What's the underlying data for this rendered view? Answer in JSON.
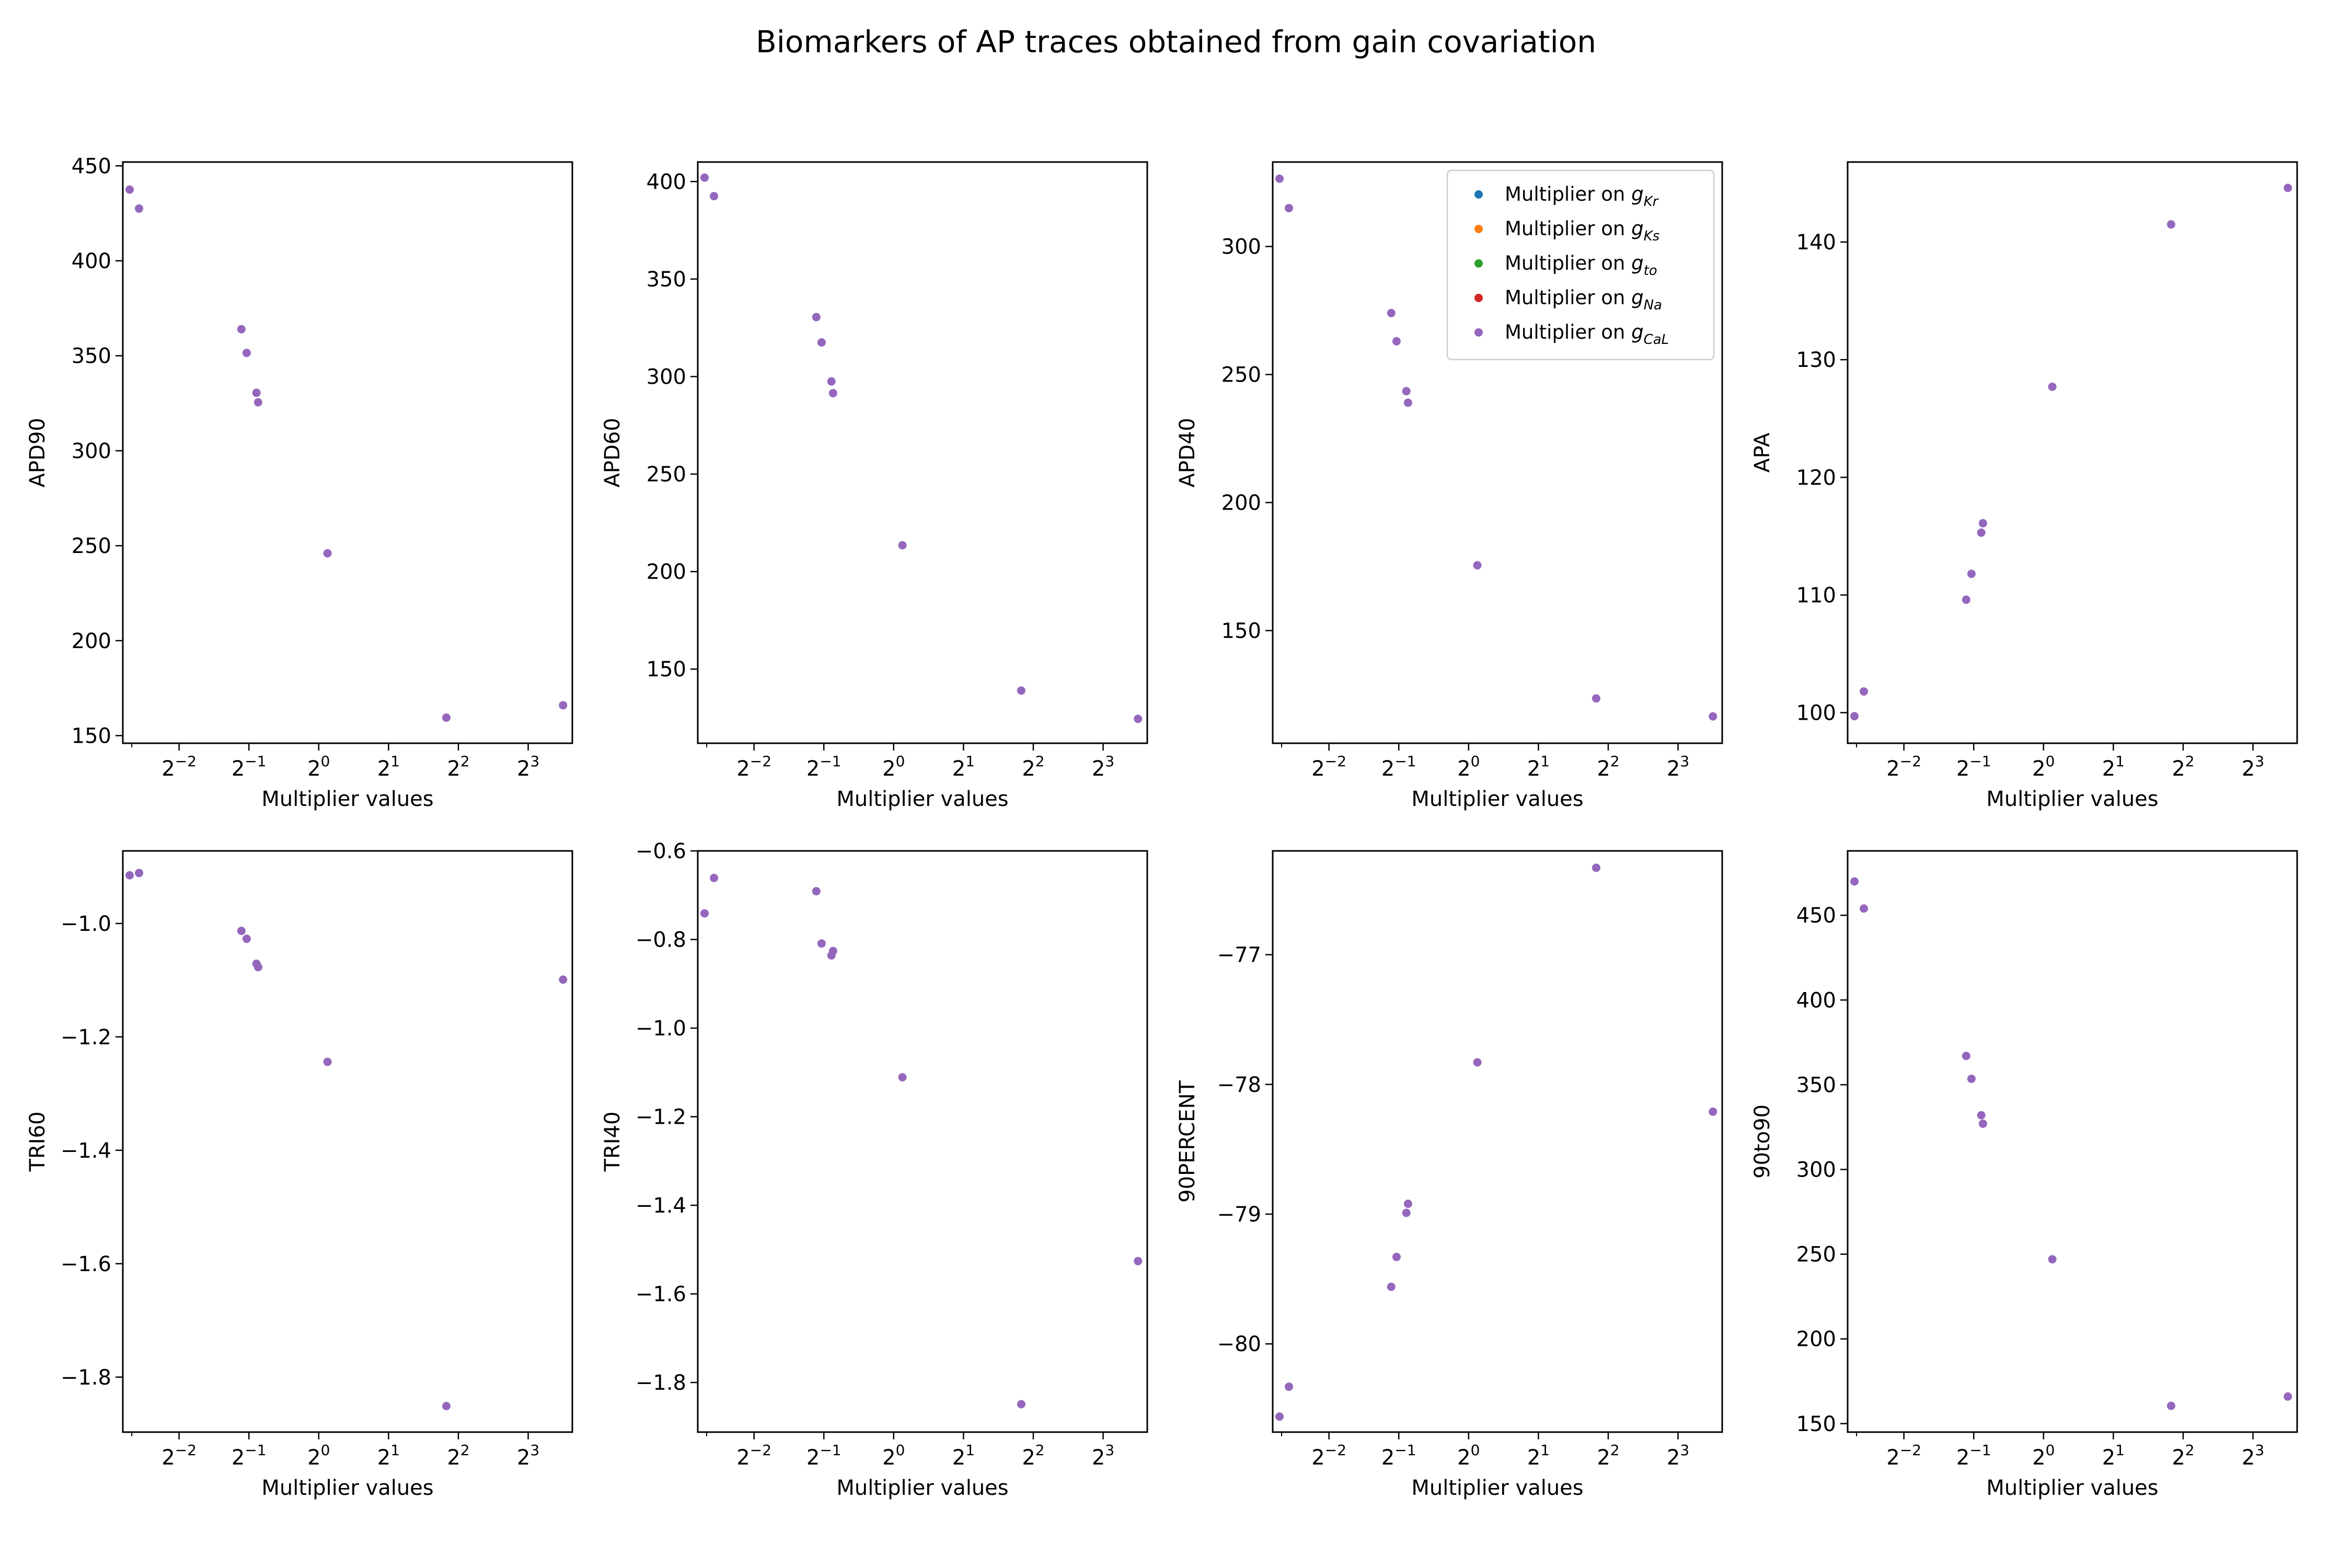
{
  "figure": {
    "title": "Biomarkers of AP traces obtained from gain covariation"
  },
  "legend": {
    "prefix": "Multiplier on ",
    "entries": [
      {
        "symbol": "g",
        "sub": "Kr",
        "color": "#1f77b4"
      },
      {
        "symbol": "g",
        "sub": "Ks",
        "color": "#ff7f0e"
      },
      {
        "symbol": "g",
        "sub": "to",
        "color": "#2ca02c"
      },
      {
        "symbol": "g",
        "sub": "Na",
        "color": "#d62728"
      },
      {
        "symbol": "g",
        "sub": "CaL",
        "color": "#9467bd"
      }
    ]
  },
  "chart_data": [
    {
      "type": "scatter",
      "ylabel": "APD90",
      "xlabel": "Multiplier  values",
      "xscale": "log2",
      "xlim": [
        0.143,
        12.4
      ],
      "ylim": [
        146,
        452
      ],
      "xticks": [
        0.25,
        0.5,
        1,
        2,
        4,
        8
      ],
      "xticklabels": [
        {
          "base": "2",
          "exp": "−2"
        },
        {
          "base": "2",
          "exp": "−1"
        },
        {
          "base": "2",
          "exp": "0"
        },
        {
          "base": "2",
          "exp": "1"
        },
        {
          "base": "2",
          "exp": "2"
        },
        {
          "base": "2",
          "exp": "3"
        }
      ],
      "yticks": [
        150,
        200,
        250,
        300,
        350,
        400,
        450
      ],
      "yticklabels": [
        "150",
        "200",
        "250",
        "300",
        "350",
        "400",
        "450"
      ],
      "x": [
        0.153,
        0.168,
        0.464,
        0.489,
        0.539,
        0.548,
        1.091,
        3.55,
        11.31
      ],
      "y": [
        437.5,
        427.5,
        364,
        351.5,
        330.5,
        325.5,
        246,
        159.5,
        166
      ]
    },
    {
      "type": "scatter",
      "ylabel": "APD60",
      "xlabel": "Multiplier  values",
      "xscale": "log2",
      "xlim": [
        0.143,
        12.4
      ],
      "ylim": [
        112,
        410
      ],
      "xticks": [
        0.25,
        0.5,
        1,
        2,
        4,
        8
      ],
      "xticklabels": [
        {
          "base": "2",
          "exp": "−2"
        },
        {
          "base": "2",
          "exp": "−1"
        },
        {
          "base": "2",
          "exp": "0"
        },
        {
          "base": "2",
          "exp": "1"
        },
        {
          "base": "2",
          "exp": "2"
        },
        {
          "base": "2",
          "exp": "3"
        }
      ],
      "yticks": [
        150,
        200,
        250,
        300,
        350,
        400
      ],
      "yticklabels": [
        "150",
        "200",
        "250",
        "300",
        "350",
        "400"
      ],
      "x": [
        0.153,
        0.168,
        0.464,
        0.489,
        0.539,
        0.548,
        1.091,
        3.55,
        11.31
      ],
      "y": [
        402,
        392.5,
        330.5,
        317.5,
        297.5,
        291.5,
        213.5,
        139,
        124.5
      ]
    },
    {
      "type": "scatter",
      "ylabel": "APD40",
      "xlabel": "Multiplier  values",
      "xscale": "log2",
      "xlim": [
        0.143,
        12.4
      ],
      "ylim": [
        106,
        333
      ],
      "xticks": [
        0.25,
        0.5,
        1,
        2,
        4,
        8
      ],
      "xticklabels": [
        {
          "base": "2",
          "exp": "−2"
        },
        {
          "base": "2",
          "exp": "−1"
        },
        {
          "base": "2",
          "exp": "0"
        },
        {
          "base": "2",
          "exp": "1"
        },
        {
          "base": "2",
          "exp": "2"
        },
        {
          "base": "2",
          "exp": "3"
        }
      ],
      "yticks": [
        150,
        200,
        250,
        300
      ],
      "yticklabels": [
        "150",
        "200",
        "250",
        "300"
      ],
      "x": [
        0.153,
        0.168,
        0.464,
        0.489,
        0.539,
        0.548,
        1.091,
        3.55,
        11.31
      ],
      "y": [
        326.5,
        315,
        274,
        263,
        243.5,
        239,
        175.5,
        123.5,
        116.5
      ],
      "legend": "upper right"
    },
    {
      "type": "scatter",
      "ylabel": "APA",
      "xlabel": "Multiplier  values",
      "xscale": "log2",
      "xlim": [
        0.143,
        12.4
      ],
      "ylim": [
        97.4,
        146.8
      ],
      "xticks": [
        0.25,
        0.5,
        1,
        2,
        4,
        8
      ],
      "xticklabels": [
        {
          "base": "2",
          "exp": "−2"
        },
        {
          "base": "2",
          "exp": "−1"
        },
        {
          "base": "2",
          "exp": "0"
        },
        {
          "base": "2",
          "exp": "1"
        },
        {
          "base": "2",
          "exp": "2"
        },
        {
          "base": "2",
          "exp": "3"
        }
      ],
      "yticks": [
        100,
        110,
        120,
        130,
        140
      ],
      "yticklabels": [
        "100",
        "110",
        "120",
        "130",
        "140"
      ],
      "x": [
        0.153,
        0.168,
        0.464,
        0.489,
        0.539,
        0.548,
        1.091,
        3.55,
        11.31
      ],
      "y": [
        99.7,
        101.8,
        109.6,
        111.8,
        115.3,
        116.1,
        127.7,
        141.5,
        144.6
      ]
    },
    {
      "type": "scatter",
      "ylabel": "TRI60",
      "xlabel": "Multiplier  values",
      "xscale": "log2",
      "xlim": [
        0.143,
        12.4
      ],
      "ylim": [
        -1.897,
        -0.872
      ],
      "xticks": [
        0.25,
        0.5,
        1,
        2,
        4,
        8
      ],
      "xticklabels": [
        {
          "base": "2",
          "exp": "−2"
        },
        {
          "base": "2",
          "exp": "−1"
        },
        {
          "base": "2",
          "exp": "0"
        },
        {
          "base": "2",
          "exp": "1"
        },
        {
          "base": "2",
          "exp": "2"
        },
        {
          "base": "2",
          "exp": "3"
        }
      ],
      "yticks": [
        -1.8,
        -1.6,
        -1.4,
        -1.2,
        -1.0
      ],
      "yticklabels": [
        "−1.8",
        "−1.6",
        "−1.4",
        "−1.2",
        "−1.0"
      ],
      "x": [
        0.153,
        0.168,
        0.464,
        0.489,
        0.539,
        0.548,
        1.091,
        3.55,
        11.31
      ],
      "y": [
        -0.915,
        -0.911,
        -1.013,
        -1.027,
        -1.071,
        -1.077,
        -1.244,
        -1.851,
        -1.099
      ]
    },
    {
      "type": "scatter",
      "ylabel": "TRI40",
      "xlabel": "Multiplier  values",
      "xscale": "log2",
      "xlim": [
        0.143,
        12.4
      ],
      "ylim": [
        -1.912,
        -0.6
      ],
      "xticks": [
        0.25,
        0.5,
        1,
        2,
        4,
        8
      ],
      "xticklabels": [
        {
          "base": "2",
          "exp": "−2"
        },
        {
          "base": "2",
          "exp": "−1"
        },
        {
          "base": "2",
          "exp": "0"
        },
        {
          "base": "2",
          "exp": "1"
        },
        {
          "base": "2",
          "exp": "2"
        },
        {
          "base": "2",
          "exp": "3"
        }
      ],
      "yticks": [
        -1.8,
        -1.6,
        -1.4,
        -1.2,
        -1.0,
        -0.8,
        -0.6
      ],
      "yticklabels": [
        "−1.8",
        "−1.6",
        "−1.4",
        "−1.2",
        "−1.0",
        "−0.8",
        "−0.6"
      ],
      "x": [
        0.153,
        0.168,
        0.464,
        0.489,
        0.539,
        0.548,
        1.091,
        3.55,
        11.31
      ],
      "y": [
        -0.741,
        -0.661,
        -0.691,
        -0.809,
        -0.836,
        -0.826,
        -1.111,
        -1.849,
        -1.526
      ]
    },
    {
      "type": "scatter",
      "ylabel": "90PERCENT",
      "xlabel": "Multiplier  values",
      "xscale": "log2",
      "xlim": [
        0.143,
        12.4
      ],
      "ylim": [
        -80.68,
        -76.2
      ],
      "xticks": [
        0.25,
        0.5,
        1,
        2,
        4,
        8
      ],
      "xticklabels": [
        {
          "base": "2",
          "exp": "−2"
        },
        {
          "base": "2",
          "exp": "−1"
        },
        {
          "base": "2",
          "exp": "0"
        },
        {
          "base": "2",
          "exp": "1"
        },
        {
          "base": "2",
          "exp": "2"
        },
        {
          "base": "2",
          "exp": "3"
        }
      ],
      "yticks": [
        -80,
        -79,
        -78,
        -77
      ],
      "yticklabels": [
        "−80",
        "−79",
        "−78",
        "−77"
      ],
      "x": [
        0.153,
        0.168,
        0.464,
        0.489,
        0.539,
        0.548,
        1.091,
        3.55,
        11.31
      ],
      "y": [
        -80.56,
        -80.33,
        -79.56,
        -79.33,
        -78.99,
        -78.92,
        -77.83,
        -76.33,
        -78.21
      ]
    },
    {
      "type": "scatter",
      "ylabel": "90to90",
      "xlabel": "Multiplier  values",
      "xscale": "log2",
      "xlim": [
        0.143,
        12.4
      ],
      "ylim": [
        145,
        488
      ],
      "xticks": [
        0.25,
        0.5,
        1,
        2,
        4,
        8
      ],
      "xticklabels": [
        {
          "base": "2",
          "exp": "−2"
        },
        {
          "base": "2",
          "exp": "−1"
        },
        {
          "base": "2",
          "exp": "0"
        },
        {
          "base": "2",
          "exp": "1"
        },
        {
          "base": "2",
          "exp": "2"
        },
        {
          "base": "2",
          "exp": "3"
        }
      ],
      "yticks": [
        150,
        200,
        250,
        300,
        350,
        400,
        450
      ],
      "yticklabels": [
        "150",
        "200",
        "250",
        "300",
        "350",
        "400",
        "450"
      ],
      "x": [
        0.153,
        0.168,
        0.464,
        0.489,
        0.539,
        0.548,
        1.091,
        3.55,
        11.31
      ],
      "y": [
        470,
        454,
        367,
        353.5,
        332,
        327,
        247,
        160.5,
        166
      ]
    }
  ]
}
